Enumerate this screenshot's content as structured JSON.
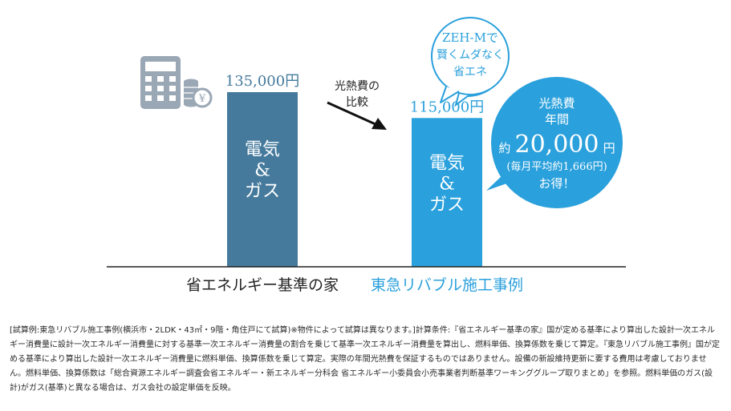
{
  "chart_data": {
    "type": "bar",
    "categories": [
      "省エネルギー基準の家",
      "東急リバブル施工事例"
    ],
    "values": [
      135000,
      115000
    ],
    "value_labels": [
      "135,000円",
      "115,000円"
    ],
    "bar_labels": [
      [
        "電気",
        "&",
        "ガス"
      ],
      [
        "電気",
        "&",
        "ガス"
      ]
    ],
    "colors": [
      "#457a9c",
      "#2aa0dc"
    ],
    "category_label_colors": [
      "#222222",
      "#2aa0dc"
    ],
    "ylim": [
      0,
      135000
    ],
    "arrow_label": [
      "光熱費の",
      "比較"
    ],
    "zeh_bubble": [
      "ZEH-Mで",
      "賢くムダなく",
      "省エネ"
    ],
    "savings_bubble": {
      "line1": "光熱費",
      "line2": "年間",
      "prefix": "約",
      "amount": "20,000",
      "suffix": "円",
      "monthly": "(毎月平均約1,666円)",
      "gain": "お得！"
    },
    "icons": [
      "calculator-icon",
      "coin-stack-icon"
    ],
    "yen_symbol": "¥"
  },
  "footnote": "[試算例:東急リバブル施工事例(横浜市・2LDK・43㎡・9階・角住戸にて試算)※物件によって試算は異なります。]計算条件:『省エネルギー基準の家』国が定める基準により算出した設計一次エネルギー消費量に設計一次エネルギー消費量に対する基準一次エネルギー消費量の割合を乗じて基準一次エネルギー消費量を算出し、燃料単価、換算係数を乗じて算定。『東急リバブル施工事例』国が定める基準により算出した設計一次エネルギー消費量に燃料単価、換算係数を乗じて算定。実際の年間光熱費を保証するものではありません。設備の新設維持更新に要する費用は考慮しておりません。燃料単価、換算係数は「総合資源エネルギー調査会省エネルギー・新エネルギー分科会 省エネルギー小委員会小売事業者判断基準ワーキンググループ取りまとめ」を参照。燃料単価のガス(設計)がガス(基準)と異なる場合は、ガス会社の設定単価を反映。"
}
